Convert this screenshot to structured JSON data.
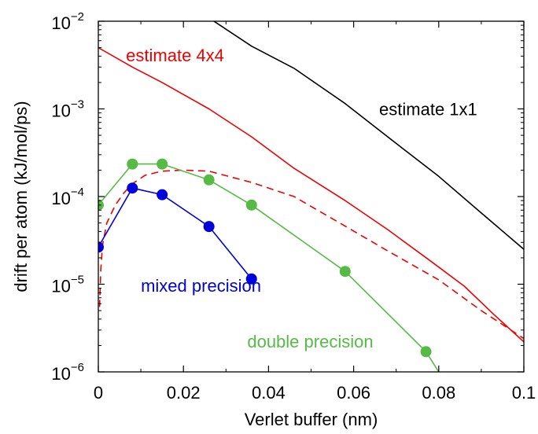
{
  "chart_data": {
    "type": "line",
    "xlabel": "Verlet buffer (nm)",
    "ylabel": "drift per atom (kJ/mol/ps)",
    "xlim": [
      0,
      0.1
    ],
    "ylim": [
      1e-06,
      0.01
    ],
    "yscale": "log",
    "grid": false,
    "x_ticks": [
      {
        "value": 0,
        "label": "0"
      },
      {
        "value": 0.02,
        "label": "0.02"
      },
      {
        "value": 0.04,
        "label": "0.04"
      },
      {
        "value": 0.06,
        "label": "0.06"
      },
      {
        "value": 0.08,
        "label": "0.08"
      },
      {
        "value": 0.1,
        "label": "0.1"
      }
    ],
    "y_ticks": [
      {
        "value": 1e-06,
        "base": "10",
        "exp": "−6"
      },
      {
        "value": 1e-05,
        "base": "10",
        "exp": "−5"
      },
      {
        "value": 0.0001,
        "base": "10",
        "exp": "−4"
      },
      {
        "value": 0.001,
        "base": "10",
        "exp": "−3"
      },
      {
        "value": 0.01,
        "base": "10",
        "exp": "−2"
      }
    ],
    "series": [
      {
        "name": "estimate 1x1",
        "color": "#000000",
        "style": "solid",
        "markers": false,
        "x": [
          0.0265,
          0.036,
          0.046,
          0.058,
          0.068,
          0.08,
          0.09,
          0.1
        ],
        "y": [
          0.0105,
          0.0052,
          0.0029,
          0.00115,
          0.00048,
          0.00017,
          6.5e-05,
          2.5e-05
        ]
      },
      {
        "name": "estimate 4x4",
        "color": "#ee0000",
        "style": "solid",
        "markers": false,
        "x": [
          0.0,
          0.008,
          0.015,
          0.026,
          0.036,
          0.046,
          0.058,
          0.068,
          0.078,
          0.086,
          0.093,
          0.1
        ],
        "y": [
          0.005,
          0.003,
          0.002,
          0.001,
          0.00048,
          0.00021,
          9e-05,
          4.2e-05,
          1.85e-05,
          9.5e-06,
          4.5e-06,
          2.2e-06
        ]
      },
      {
        "name": "",
        "color": "#ee0000",
        "style": "dashed",
        "markers": false,
        "x": [
          0.0003,
          0.0006,
          0.001,
          0.002,
          0.004,
          0.006,
          0.008,
          0.011,
          0.015,
          0.02,
          0.026,
          0.036,
          0.046,
          0.058,
          0.068,
          0.08,
          0.09,
          0.1
        ],
        "y": [
          5.5e-06,
          1.5e-05,
          2.8e-05,
          5e-05,
          8e-05,
          0.00011,
          0.00014,
          0.000175,
          0.000195,
          0.0002,
          0.000195,
          0.000145,
          0.0001,
          4.6e-05,
          2.4e-05,
          1.12e-05,
          5e-06,
          2.4e-06
        ]
      },
      {
        "name": "double precision",
        "color": "#55bb44",
        "style": "solid",
        "markers": true,
        "x": [
          0.0,
          0.008,
          0.015,
          0.026,
          0.036,
          0.058,
          0.077,
          0.08
        ],
        "y": [
          8e-05,
          0.000235,
          0.000235,
          0.000155,
          8e-05,
          1.4e-05,
          1.7e-06,
          1e-06
        ],
        "marker_points": 7
      },
      {
        "name": "mixed precision",
        "color": "#0000dd",
        "style": "solid",
        "markers": true,
        "x": [
          0.0,
          0.008,
          0.015,
          0.026,
          0.036
        ],
        "y": [
          2.65e-05,
          0.000125,
          0.000105,
          4.55e-05,
          1.15e-05
        ],
        "marker_points": 5
      }
    ],
    "annotations": [
      {
        "text": "estimate 1x1",
        "color": "#000000",
        "x": 0.066,
        "y": 0.00085
      },
      {
        "text": "estimate 4x4",
        "color": "#ee0000",
        "x": 0.0065,
        "y": 0.0035
      },
      {
        "text": "mixed precision",
        "color": "#0000dd",
        "x": 0.01,
        "y": 8.2e-06
      },
      {
        "text": "double precision",
        "color": "#55bb44",
        "x": 0.035,
        "y": 1.9e-06
      }
    ]
  }
}
